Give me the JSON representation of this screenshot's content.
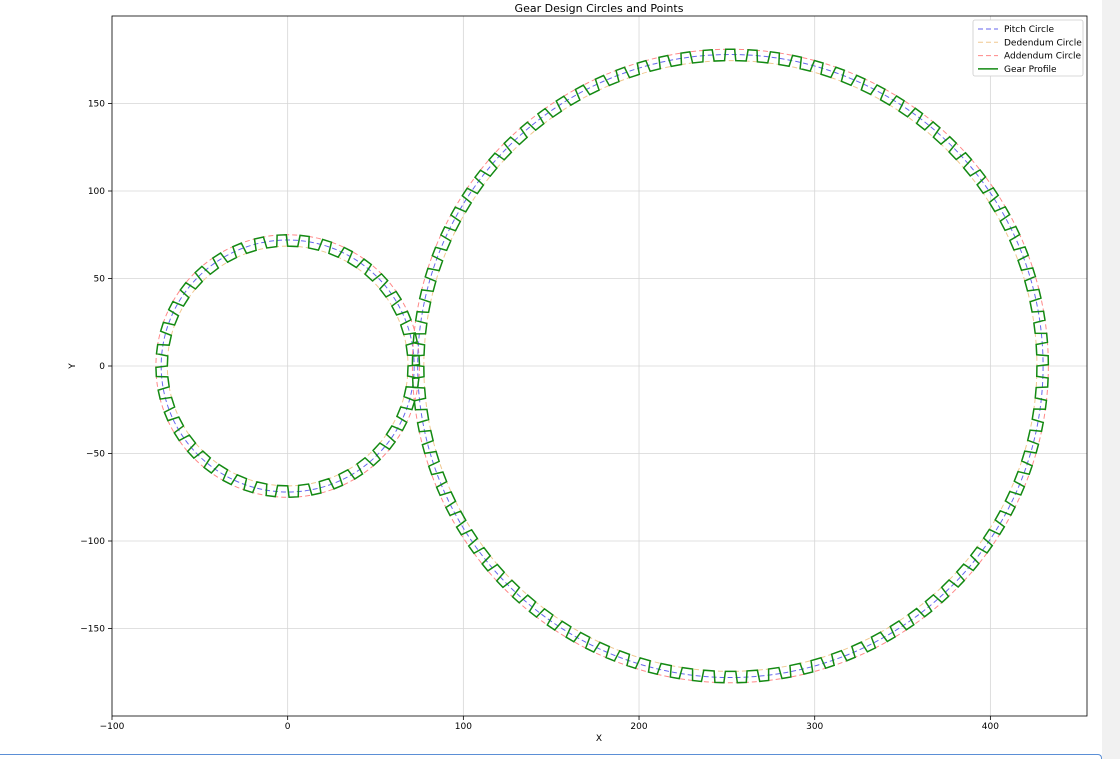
{
  "chart_data": {
    "type": "line",
    "title": "Gear Design Circles and Points",
    "xlabel": "X",
    "ylabel": "Y",
    "xlim": [
      -100,
      455
    ],
    "ylim": [
      -200,
      200
    ],
    "xticks": [
      -100,
      0,
      100,
      200,
      300,
      400
    ],
    "yticks": [
      -150,
      -100,
      -50,
      0,
      50,
      100,
      150
    ],
    "xtick_labels": [
      "−100",
      "0",
      "100",
      "200",
      "300",
      "400"
    ],
    "ytick_labels": [
      "−150",
      "−100",
      "−50",
      "0",
      "50",
      "100",
      "150"
    ],
    "grid": true,
    "legend_position": "top-right",
    "legend": [
      "Pitch Circle",
      "Dedendum Circle",
      "Addendum Circle",
      "Gear Profile"
    ],
    "gears": [
      {
        "center": [
          0,
          0
        ],
        "pitch_radius": 72,
        "dedendum_radius": 68.5,
        "addendum_radius": 75,
        "teeth": 36
      },
      {
        "center": [
          252,
          0
        ],
        "pitch_radius": 178,
        "dedendum_radius": 174.5,
        "addendum_radius": 181,
        "teeth": 89
      }
    ],
    "colors": {
      "pitch": "#6666ee",
      "dedendum": "#f0c890",
      "addendum": "#ff8888",
      "profile": "#138a13",
      "grid": "#d6d6d6"
    }
  }
}
